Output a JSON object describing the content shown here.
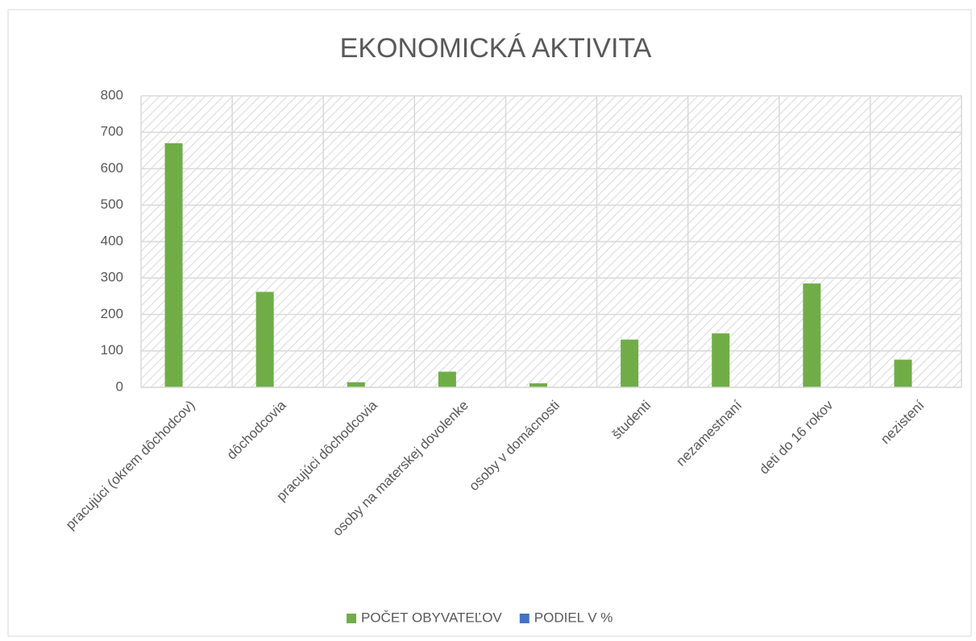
{
  "chart_data": {
    "type": "bar",
    "title": "EKONOMICKÁ AKTIVITA",
    "categories": [
      "pracujúci (okrem dôchodcov)",
      "dôchodcovia",
      "pracujúci dôchodcovia",
      "osoby na materskej dovolenke",
      "osoby v domácnosti",
      "študenti",
      "nezamestnaní",
      "deti do 16 rokov",
      "nezistení"
    ],
    "series": [
      {
        "name": "POČET OBYVATEĽOV",
        "color": "#70ad47",
        "values": [
          670,
          262,
          14,
          43,
          11,
          131,
          148,
          285,
          76
        ]
      },
      {
        "name": "PODIEL V %",
        "color": "#4472c4",
        "values": [
          0.41,
          0.16,
          0.01,
          0.03,
          0.01,
          0.08,
          0.09,
          0.17,
          0.05
        ]
      }
    ],
    "ylim": [
      0,
      800
    ],
    "yticks": [
      0,
      100,
      200,
      300,
      400,
      500,
      600,
      700,
      800
    ],
    "grid": true,
    "legend": "bottom"
  }
}
